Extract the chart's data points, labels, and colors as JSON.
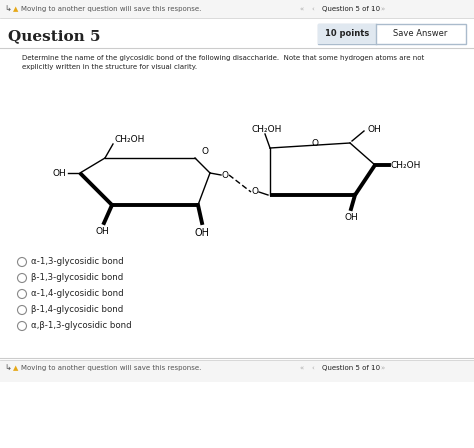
{
  "bg_color": "#ffffff",
  "light_gray": "#f5f5f5",
  "border_color": "#cccccc",
  "text_color": "#222222",
  "gray_text": "#555555",
  "top_bar_text": "Moving to another question will save this response.",
  "top_bar_right": "Question 5 of 10",
  "question_title": "Question 5",
  "points_label": "10 points",
  "save_btn": "Save Answer",
  "instruction_line1": "Determine the name of the glycosidic bond of the following disaccharide.  Note that some hydrogen atoms are not",
  "instruction_line2": "explicitly written in the structure for visual clarity.",
  "choices": [
    "α-1,3-glycosidic bond",
    "β-1,3-glycosidic bond",
    "α-1,4-glycosidic bond",
    "β-1,4-glycosidic bond",
    "α,β-1,3-glycosidic bond"
  ],
  "footer_text": "Moving to another question will save this response.",
  "footer_right": "Question 5 of 10",
  "warning_color": "#e6a817",
  "nav_button_color": "#aaaaaa",
  "points_box_bg": "#e0e8f0",
  "save_box_bg": "#ffffff"
}
